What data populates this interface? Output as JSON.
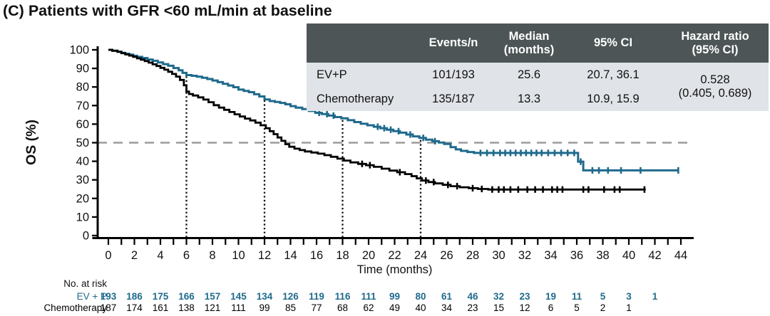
{
  "title": "(C) Patients with GFR <60 mL/min at baseline",
  "colors": {
    "ev_p": "#1f6a8c",
    "chemotherapy": "#000000",
    "median_line": "#9c9c9c",
    "landmark_line": "#111111",
    "table_header_bg": "#4d5556",
    "table_row_bg": "#e0e3e7",
    "axis": "#000000"
  },
  "summary_table": {
    "headers": {
      "events": "Events/n",
      "median_line1": "Median",
      "median_line2": "(months)",
      "ci": "95% CI",
      "hr_line1": "Hazard ratio",
      "hr_line2": "(95% CI)"
    },
    "rows": [
      {
        "label": "EV+P",
        "events": "101/193",
        "median": "25.6",
        "ci": "20.7, 36.1"
      },
      {
        "label": "Chemotherapy",
        "events": "135/187",
        "median": "13.3",
        "ci": "10.9, 15.9"
      }
    ],
    "hazard_ratio": {
      "value": "0.528",
      "ci": "(0.405, 0.689)"
    }
  },
  "chart_data": {
    "type": "line",
    "subtype": "kaplan-meier-step",
    "title": "",
    "xlabel": "Time (months)",
    "ylabel": "OS (%)",
    "xlim": [
      0,
      44
    ],
    "ylim": [
      0,
      100
    ],
    "x_ticks": [
      0,
      2,
      4,
      6,
      8,
      10,
      12,
      14,
      16,
      18,
      20,
      22,
      24,
      26,
      28,
      30,
      32,
      34,
      36,
      38,
      40,
      42,
      44
    ],
    "x_minor_tick_every": 1,
    "y_ticks": [
      0,
      10,
      20,
      30,
      40,
      50,
      60,
      70,
      80,
      90,
      100
    ],
    "grid": false,
    "reference_lines": {
      "horizontal_pct": 50,
      "vertical_dotted_months": [
        6,
        12,
        18,
        24
      ]
    },
    "series": [
      {
        "name": "EV+P",
        "color": "#1f6a8c",
        "start": [
          0,
          100
        ],
        "end_month": 43.85,
        "steps": [
          [
            0.3,
            99.5
          ],
          [
            0.7,
            99.0
          ],
          [
            1.0,
            98.4
          ],
          [
            1.3,
            97.9
          ],
          [
            1.6,
            97.4
          ],
          [
            1.9,
            96.8
          ],
          [
            2.2,
            96.2
          ],
          [
            2.6,
            95.6
          ],
          [
            3.0,
            94.8
          ],
          [
            3.4,
            94.1
          ],
          [
            3.8,
            93.2
          ],
          [
            4.2,
            92.3
          ],
          [
            4.6,
            91.4
          ],
          [
            5.0,
            90.2
          ],
          [
            5.4,
            89.0
          ],
          [
            5.7,
            87.6
          ],
          [
            6.0,
            86.4
          ],
          [
            6.4,
            86.0
          ],
          [
            6.8,
            85.5
          ],
          [
            7.2,
            85.0
          ],
          [
            7.6,
            84.3
          ],
          [
            8.0,
            83.5
          ],
          [
            8.4,
            82.6
          ],
          [
            8.8,
            81.7
          ],
          [
            9.2,
            80.8
          ],
          [
            9.6,
            79.9
          ],
          [
            10.0,
            78.6
          ],
          [
            10.4,
            77.9
          ],
          [
            10.8,
            77.2
          ],
          [
            11.2,
            76.1
          ],
          [
            11.6,
            74.9
          ],
          [
            12.0,
            73.3
          ],
          [
            12.4,
            72.4
          ],
          [
            12.8,
            71.9
          ],
          [
            13.2,
            71.4
          ],
          [
            13.6,
            70.7
          ],
          [
            14.0,
            69.7
          ],
          [
            14.4,
            68.9
          ],
          [
            14.9,
            68.1
          ],
          [
            15.4,
            67.1
          ],
          [
            15.9,
            66.1
          ],
          [
            16.4,
            65.4
          ],
          [
            16.9,
            64.6
          ],
          [
            17.4,
            63.8
          ],
          [
            17.9,
            63.1
          ],
          [
            18.4,
            62.1
          ],
          [
            18.9,
            61.1
          ],
          [
            19.4,
            60.2
          ],
          [
            19.9,
            59.4
          ],
          [
            20.4,
            58.6
          ],
          [
            20.9,
            57.8
          ],
          [
            21.4,
            57.0
          ],
          [
            21.9,
            56.2
          ],
          [
            22.4,
            55.4
          ],
          [
            22.9,
            54.4
          ],
          [
            23.4,
            53.4
          ],
          [
            23.9,
            52.6
          ],
          [
            24.4,
            51.6
          ],
          [
            24.9,
            50.8
          ],
          [
            25.4,
            50.1
          ],
          [
            25.8,
            49.3
          ],
          [
            26.3,
            47.6
          ],
          [
            26.7,
            46.4
          ],
          [
            27.1,
            45.6
          ],
          [
            27.6,
            45.0
          ],
          [
            28.1,
            44.5
          ],
          [
            36.1,
            39.8
          ],
          [
            36.5,
            35.1
          ]
        ],
        "censor_months": [
          16.2,
          16.8,
          17.3,
          20.7,
          21.2,
          21.7,
          22.3,
          23.2,
          24.2,
          25.1,
          28.6,
          29.1,
          29.6,
          30.1,
          30.5,
          30.9,
          31.3,
          31.7,
          32.1,
          32.5,
          32.9,
          33.3,
          33.8,
          34.3,
          34.8,
          35.3,
          35.8,
          36.3,
          37.2,
          37.7,
          38.4,
          39.4,
          40.9,
          43.8
        ]
      },
      {
        "name": "Chemotherapy",
        "color": "#000000",
        "start": [
          0,
          100
        ],
        "end_month": 41.3,
        "steps": [
          [
            0.3,
            99.5
          ],
          [
            0.7,
            98.9
          ],
          [
            1.0,
            98.2
          ],
          [
            1.3,
            97.5
          ],
          [
            1.6,
            96.9
          ],
          [
            1.9,
            96.2
          ],
          [
            2.2,
            95.4
          ],
          [
            2.5,
            94.7
          ],
          [
            2.8,
            93.9
          ],
          [
            3.1,
            93.1
          ],
          [
            3.4,
            92.2
          ],
          [
            3.7,
            91.3
          ],
          [
            4.0,
            90.3
          ],
          [
            4.3,
            89.3
          ],
          [
            4.6,
            88.2
          ],
          [
            4.9,
            87.0
          ],
          [
            5.2,
            85.6
          ],
          [
            5.5,
            83.8
          ],
          [
            5.8,
            80.9
          ],
          [
            6.0,
            77.5
          ],
          [
            6.2,
            76.2
          ],
          [
            6.5,
            75.4
          ],
          [
            6.9,
            74.4
          ],
          [
            7.3,
            73.2
          ],
          [
            7.7,
            71.8
          ],
          [
            8.1,
            70.2
          ],
          [
            8.5,
            68.9
          ],
          [
            8.9,
            67.7
          ],
          [
            9.3,
            66.5
          ],
          [
            9.7,
            65.3
          ],
          [
            10.1,
            64.1
          ],
          [
            10.5,
            63.0
          ],
          [
            10.9,
            62.0
          ],
          [
            11.3,
            60.8
          ],
          [
            11.7,
            59.4
          ],
          [
            12.1,
            57.8
          ],
          [
            12.4,
            56.2
          ],
          [
            12.7,
            54.6
          ],
          [
            13.0,
            52.8
          ],
          [
            13.3,
            51.0
          ],
          [
            13.6,
            49.2
          ],
          [
            13.9,
            47.8
          ],
          [
            14.3,
            46.8
          ],
          [
            14.7,
            46.0
          ],
          [
            15.1,
            45.3
          ],
          [
            15.6,
            44.7
          ],
          [
            16.1,
            44.1
          ],
          [
            16.6,
            43.3
          ],
          [
            17.1,
            42.4
          ],
          [
            17.6,
            41.4
          ],
          [
            18.1,
            40.4
          ],
          [
            18.6,
            39.4
          ],
          [
            19.2,
            38.6
          ],
          [
            19.8,
            37.9
          ],
          [
            20.4,
            37.0
          ],
          [
            21.0,
            36.0
          ],
          [
            21.6,
            35.0
          ],
          [
            22.2,
            34.1
          ],
          [
            22.8,
            33.1
          ],
          [
            23.3,
            32.0
          ],
          [
            23.7,
            30.8
          ],
          [
            24.1,
            29.6
          ],
          [
            24.6,
            28.8
          ],
          [
            25.1,
            28.1
          ],
          [
            25.7,
            27.3
          ],
          [
            26.3,
            26.6
          ],
          [
            27.0,
            26.0
          ],
          [
            27.7,
            25.5
          ],
          [
            28.4,
            25.1
          ],
          [
            29.2,
            24.8
          ]
        ],
        "censor_months": [
          19.5,
          20.1,
          22.4,
          24.4,
          25.0,
          26.1,
          26.8,
          28.0,
          28.7,
          29.5,
          30.0,
          30.4,
          30.9,
          31.5,
          32.2,
          32.8,
          33.4,
          34.1,
          34.5,
          34.9,
          36.5,
          36.9,
          38.1,
          38.9,
          39.3,
          41.2
        ]
      }
    ],
    "at_risk": {
      "title": "No. at risk",
      "interval_months": 2,
      "rows": [
        {
          "label": "EV + P",
          "color": "#1f6a8c",
          "counts": [
            193,
            186,
            175,
            166,
            157,
            145,
            134,
            126,
            119,
            116,
            111,
            99,
            80,
            61,
            46,
            32,
            23,
            19,
            11,
            5,
            3,
            1
          ]
        },
        {
          "label": "Chemotherapy",
          "color": "#000000",
          "counts": [
            187,
            174,
            161,
            138,
            121,
            111,
            99,
            85,
            77,
            68,
            62,
            49,
            40,
            34,
            23,
            15,
            12,
            6,
            5,
            2,
            1
          ]
        }
      ]
    }
  }
}
